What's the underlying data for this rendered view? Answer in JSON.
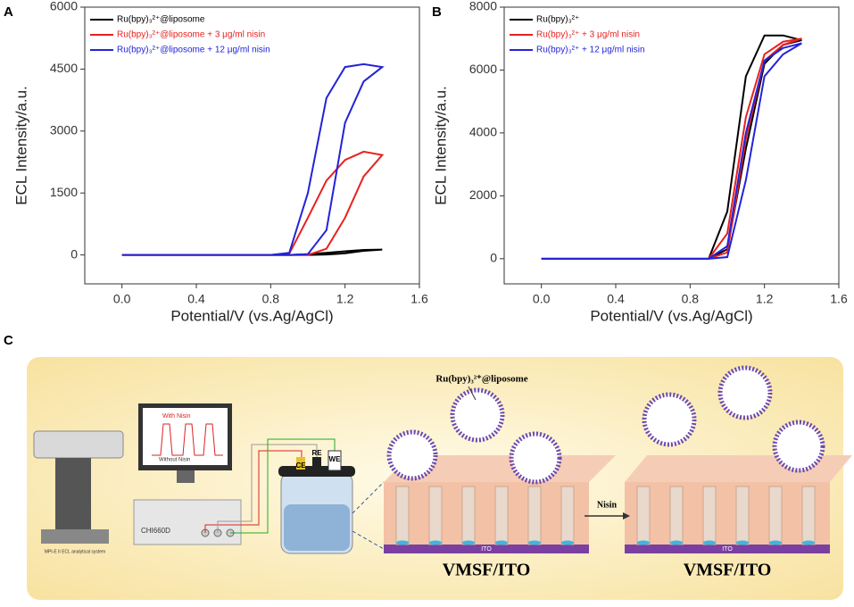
{
  "chart_data": [
    {
      "type": "line",
      "panel": "A",
      "ylabel": "ECL Intensity/a.u.",
      "xlabel": "Potential/V (vs.Ag/AgCl)",
      "x": [
        0,
        0.4,
        0.8,
        0.9,
        1.0,
        1.1,
        1.2,
        1.3,
        1.4,
        1.3,
        1.2,
        1.1,
        1.0,
        0.9,
        0.8,
        0.4,
        0
      ],
      "xlim": [
        -0.2,
        1.6
      ],
      "xticks": [
        {
          "value": 0,
          "label": "0.0"
        },
        0.4,
        0.8,
        1.2,
        1.6
      ],
      "ylim": [
        -700,
        6000
      ],
      "yticks": [
        0,
        1500,
        3000,
        4500,
        6000
      ],
      "legend": "upper left",
      "series": [
        {
          "name": "Ru(bpy)₃²⁺@liposome",
          "color": "#000000",
          "values": [
            0,
            0,
            0,
            0,
            0,
            10,
            40,
            100,
            130,
            120,
            90,
            50,
            20,
            0,
            0,
            0,
            0
          ]
        },
        {
          "name": "Ru(bpy)₃²⁺@liposome + 3 μg/ml nisin",
          "color": "#e8211f",
          "values": [
            0,
            0,
            0,
            0,
            0,
            150,
            900,
            1900,
            2420,
            2500,
            2300,
            1800,
            900,
            30,
            0,
            0,
            0
          ]
        },
        {
          "name": "Ru(bpy)₃²⁺@liposome + 12 μg/ml nisin",
          "color": "#2323d8",
          "values": [
            0,
            0,
            0,
            0,
            20,
            600,
            3200,
            4200,
            4550,
            4620,
            4550,
            3800,
            1500,
            50,
            0,
            0,
            0
          ]
        }
      ]
    },
    {
      "type": "line",
      "panel": "B",
      "ylabel": "ECL Intensity/a.u.",
      "xlabel": "Potential/V (vs.Ag/AgCl)",
      "x": [
        0,
        0.4,
        0.8,
        0.9,
        1.0,
        1.1,
        1.2,
        1.3,
        1.4,
        1.3,
        1.2,
        1.1,
        1.0,
        0.9,
        0.8,
        0.4,
        0
      ],
      "xlim": [
        -0.2,
        1.6
      ],
      "xticks": [
        {
          "value": 0,
          "label": "0.0"
        },
        0.4,
        0.8,
        1.2,
        1.6
      ],
      "ylim": [
        -800,
        8000
      ],
      "yticks": [
        0,
        2000,
        4000,
        6000,
        8000
      ],
      "legend": "upper left",
      "series": [
        {
          "name": "Ru(bpy)₃²⁺",
          "color": "#000000",
          "values": [
            0,
            0,
            0,
            0,
            300,
            3500,
            6200,
            6800,
            6950,
            7100,
            7100,
            5800,
            1500,
            0,
            0,
            0,
            0
          ]
        },
        {
          "name": "Ru(bpy)₃²⁺ + 3 μg/ml nisin",
          "color": "#e8211f",
          "values": [
            0,
            0,
            0,
            0,
            200,
            3800,
            6300,
            6800,
            7000,
            6900,
            6500,
            4500,
            800,
            0,
            0,
            0,
            0
          ]
        },
        {
          "name": "Ru(bpy)₃²⁺ + 12 μg/ml nisin",
          "color": "#2323d8",
          "values": [
            0,
            0,
            0,
            0,
            50,
            2500,
            5800,
            6500,
            6850,
            6700,
            6300,
            4000,
            400,
            0,
            0,
            0,
            0
          ]
        }
      ]
    }
  ],
  "diagram": {
    "panel": "C",
    "liposome_label": "Ru(bpy)₃²⁺@liposome",
    "nisin": "Nisin",
    "left_electrode": "VMSF/ITO",
    "right_electrode": "VMSF/ITO",
    "ito_left": "ITO",
    "ito_right": "ITO",
    "workstation": "CHI660D",
    "with_nisin": "With Nisin",
    "without_nisin": "Without Nisin",
    "ce": "CE",
    "re": "RE",
    "we": "WE",
    "analyzer": "MPI-E II ECL analytical system"
  }
}
